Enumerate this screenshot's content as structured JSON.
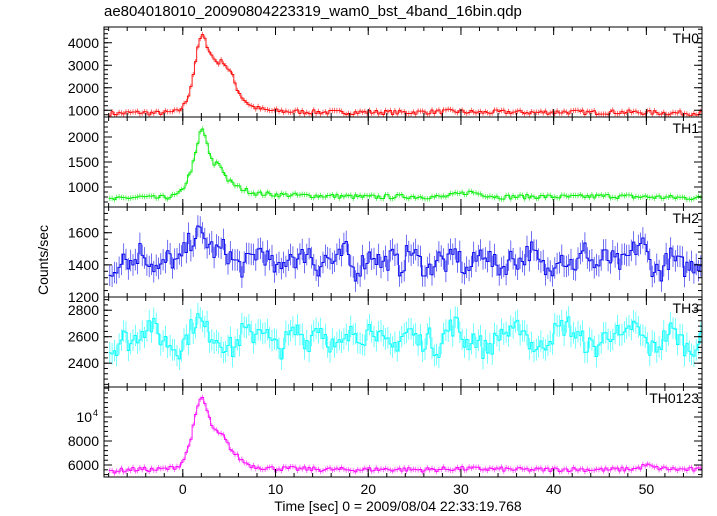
{
  "chart_data": {
    "type": "line",
    "title": "ae804018010_20090804223319_wam0_bst_4band_16bin.qdp",
    "xlabel": "Time [sec] 0 = 2009/08/04 22:33:19.768",
    "ylabel": "Counts/sec",
    "xlim": [
      -8.5,
      56
    ],
    "xticks": [
      0,
      10,
      20,
      30,
      40,
      50
    ],
    "xtick_labels": [
      "0",
      "10",
      "20",
      "30",
      "40",
      "50"
    ],
    "grid": false,
    "panels": [
      {
        "name": "TH0",
        "color": "#ff0000",
        "ylim": [
          700,
          4700
        ],
        "yticks": [
          1000,
          2000,
          3000,
          4000
        ],
        "ytick_labels": [
          "1000",
          "2000",
          "3000",
          "4000"
        ],
        "series": [
          {
            "name": "TH0",
            "x": [
              -7.5,
              -6,
              -4.5,
              -3,
              -1.5,
              -0.5,
              0,
              0.5,
              1,
              1.5,
              2,
              2.3,
              2.8,
              3.3,
              3.8,
              4.3,
              4.8,
              5.3,
              5.8,
              6.5,
              7.5,
              9,
              11,
              14,
              17,
              20,
              23,
              26,
              29,
              32,
              35,
              38,
              41,
              44,
              47,
              50,
              53,
              55.5
            ],
            "y": [
              850,
              880,
              900,
              870,
              900,
              950,
              1150,
              1500,
              2300,
              3500,
              4400,
              4200,
              3700,
              3300,
              3100,
              3200,
              2900,
              2600,
              2000,
              1500,
              1150,
              1000,
              950,
              920,
              900,
              920,
              900,
              920,
              950,
              900,
              920,
              900,
              930,
              900,
              920,
              900,
              880,
              870
            ]
          }
        ]
      },
      {
        "name": "TH1",
        "color": "#00ee00",
        "ylim": [
          600,
          2400
        ],
        "yticks": [
          1000,
          1500,
          2000
        ],
        "ytick_labels": [
          "1000",
          "1500",
          "2000"
        ],
        "series": [
          {
            "name": "TH1",
            "x": [
              -7.5,
              -6,
              -4.5,
              -3,
              -1.5,
              -0.5,
              0,
              0.5,
              1,
              1.5,
              2,
              2.3,
              2.8,
              3.3,
              3.8,
              4.3,
              4.8,
              5.5,
              6.5,
              8,
              10,
              13,
              16,
              20,
              24,
              28,
              31,
              34,
              38,
              42,
              46,
              50,
              53,
              55.5
            ],
            "y": [
              750,
              780,
              800,
              780,
              800,
              850,
              950,
              1150,
              1400,
              1750,
              2200,
              2100,
              1700,
              1450,
              1500,
              1350,
              1150,
              1050,
              950,
              870,
              850,
              830,
              820,
              800,
              810,
              800,
              900,
              800,
              810,
              800,
              820,
              800,
              790,
              780
            ]
          }
        ]
      },
      {
        "name": "TH2",
        "color": "#0000ee",
        "ylim": [
          1200,
          1760
        ],
        "yticks": [
          1200,
          1400,
          1600
        ],
        "ytick_labels": [
          "1200",
          "1400",
          "1600"
        ],
        "series": [
          {
            "name": "TH2",
            "x": [
              -7.5,
              -6.5,
              -5.5,
              -4.5,
              -3.5,
              -2.5,
              -1.5,
              -0.5,
              0.5,
              1.5,
              2.5,
              3.5,
              4.5,
              5.5,
              6.5,
              7.5,
              8.5,
              9.5,
              10.5,
              11.5,
              12.5,
              13.5,
              14.5,
              15.5,
              16.5,
              17.5,
              18.5,
              19.5,
              20.5,
              21.5,
              22.5,
              23.5,
              24.5,
              25.5,
              26.5,
              27.5,
              28.5,
              29.5,
              30.5,
              31.5,
              32.5,
              33.5,
              34.5,
              35.5,
              36.5,
              37.5,
              38.5,
              39.5,
              40.5,
              41.5,
              42.5,
              43.5,
              44.5,
              45.5,
              46.5,
              47.5,
              48.5,
              49.5,
              50.5,
              51.5,
              52.5,
              53.5,
              54.5,
              55.5
            ],
            "y": [
              1350,
              1480,
              1400,
              1500,
              1420,
              1360,
              1450,
              1400,
              1520,
              1600,
              1550,
              1480,
              1500,
              1420,
              1380,
              1450,
              1500,
              1400,
              1350,
              1480,
              1420,
              1500,
              1380,
              1450,
              1400,
              1500,
              1350,
              1420,
              1480,
              1400,
              1450,
              1380,
              1500,
              1420,
              1360,
              1450,
              1400,
              1480,
              1350,
              1420,
              1500,
              1400,
              1380,
              1450,
              1420,
              1500,
              1400,
              1350,
              1480,
              1420,
              1400,
              1500,
              1380,
              1450,
              1420,
              1400,
              1480,
              1550,
              1400,
              1350,
              1450,
              1400,
              1380,
              1420
            ]
          }
        ]
      },
      {
        "name": "TH3",
        "color": "#00ffff",
        "ylim": [
          2220,
          2900
        ],
        "yticks": [
          2400,
          2600,
          2800
        ],
        "ytick_labels": [
          "2400",
          "2600",
          "2800"
        ],
        "series": [
          {
            "name": "TH3",
            "x": [
              -7.5,
              -6.5,
              -5.5,
              -4.5,
              -3.5,
              -2.5,
              -1.5,
              -0.5,
              0.5,
              1.5,
              2.5,
              3.5,
              4.5,
              5.5,
              6.5,
              7.5,
              8.5,
              9.5,
              10.5,
              11.5,
              12.5,
              13.5,
              14.5,
              15.5,
              16.5,
              17.5,
              18.5,
              19.5,
              20.5,
              21.5,
              22.5,
              23.5,
              24.5,
              25.5,
              26.5,
              27.5,
              28.5,
              29.5,
              30.5,
              31.5,
              32.5,
              33.5,
              34.5,
              35.5,
              36.5,
              37.5,
              38.5,
              39.5,
              40.5,
              41.5,
              42.5,
              43.5,
              44.5,
              45.5,
              46.5,
              47.5,
              48.5,
              49.5,
              50.5,
              51.5,
              52.5,
              53.5,
              54.5,
              55.5
            ],
            "y": [
              2500,
              2600,
              2550,
              2650,
              2700,
              2600,
              2550,
              2500,
              2600,
              2750,
              2650,
              2600,
              2550,
              2500,
              2650,
              2600,
              2700,
              2550,
              2500,
              2600,
              2650,
              2550,
              2700,
              2600,
              2500,
              2550,
              2650,
              2600,
              2700,
              2550,
              2500,
              2600,
              2650,
              2550,
              2600,
              2500,
              2650,
              2700,
              2550,
              2600,
              2500,
              2550,
              2650,
              2600,
              2700,
              2550,
              2500,
              2600,
              2650,
              2700,
              2600,
              2550,
              2500,
              2600,
              2650,
              2550,
              2700,
              2600,
              2500,
              2550,
              2650,
              2600,
              2500,
              2550
            ]
          }
        ]
      },
      {
        "name": "TH0123",
        "color": "#ff00ff",
        "ylim": [
          5000,
          12500
        ],
        "yticks": [
          6000,
          8000,
          10000
        ],
        "ytick_labels": [
          "6000",
          "8000",
          ""
        ],
        "ytick_label_special": {
          "base": "10",
          "exp": "4"
        },
        "series": [
          {
            "name": "TH0123",
            "x": [
              -7.5,
              -6,
              -4.5,
              -3,
              -1.5,
              -0.5,
              0,
              0.5,
              1,
              1.5,
              2,
              2.3,
              2.8,
              3.3,
              3.8,
              4.3,
              4.8,
              5.5,
              6.5,
              7.5,
              9,
              11,
              14,
              18,
              22,
              26,
              30,
              34,
              38,
              42,
              46,
              49,
              50,
              51,
              53,
              55.5
            ],
            "y": [
              5500,
              5600,
              5650,
              5600,
              5700,
              5900,
              6300,
              7200,
              8700,
              10500,
              11800,
              11300,
              10000,
              9000,
              8600,
              8500,
              7800,
              7000,
              6300,
              5900,
              5750,
              5700,
              5650,
              5600,
              5650,
              5600,
              5700,
              5650,
              5600,
              5650,
              5600,
              5700,
              6000,
              5750,
              5650,
              5600
            ]
          }
        ]
      }
    ]
  }
}
